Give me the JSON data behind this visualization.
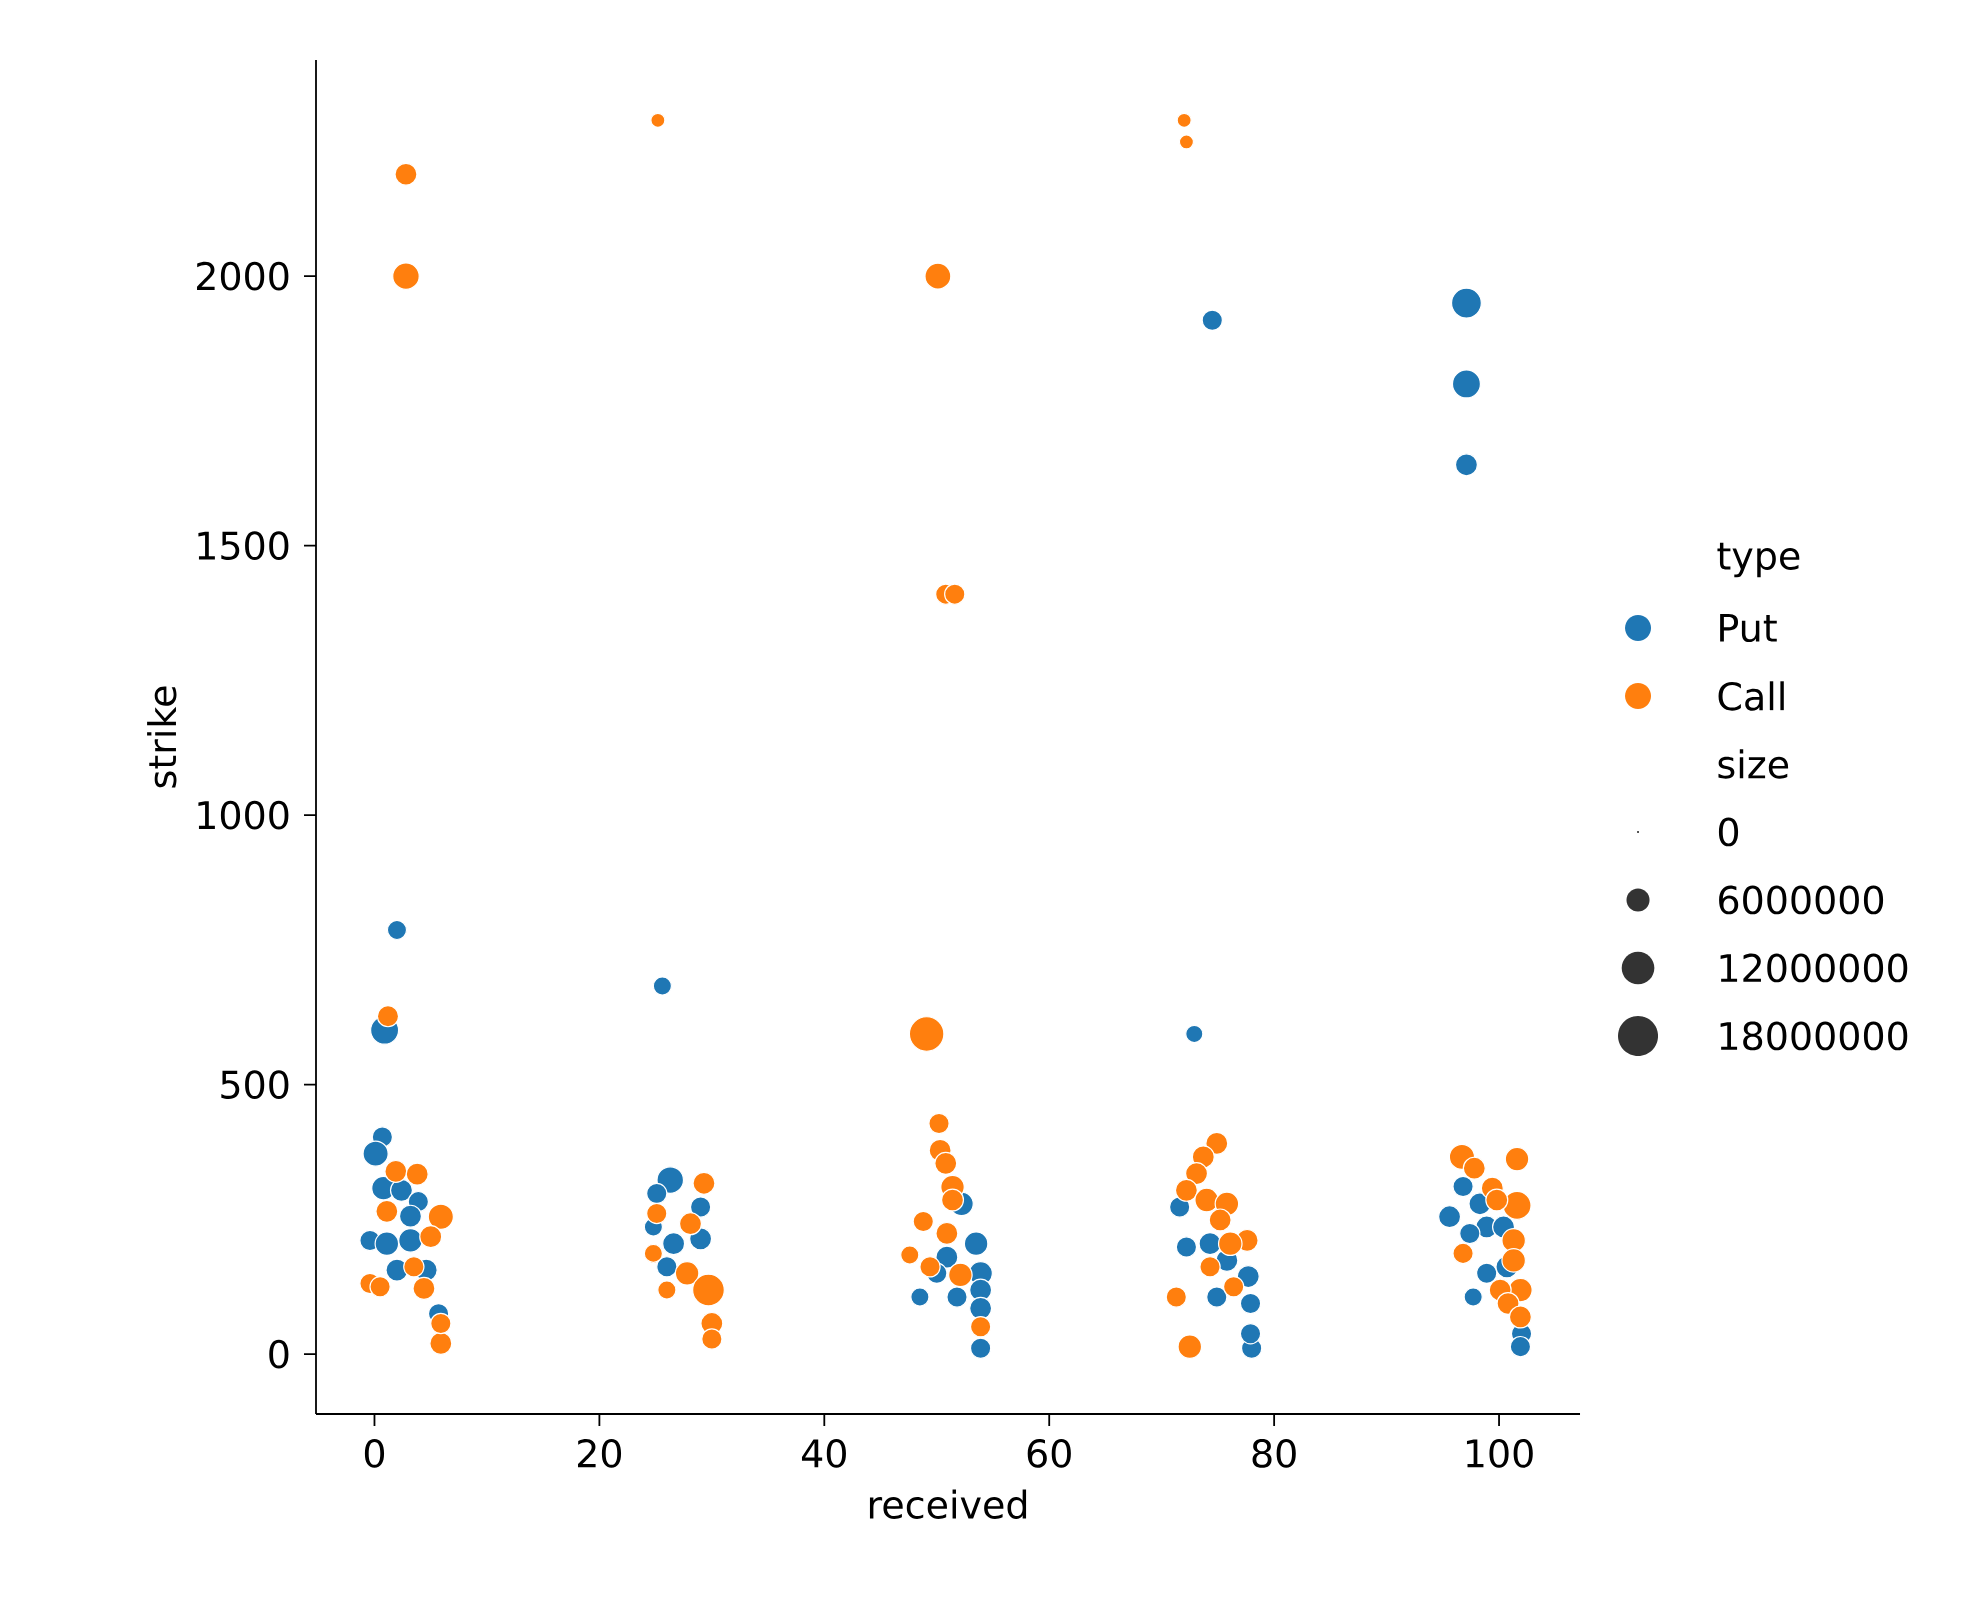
{
  "chart_data": {
    "type": "scatter",
    "xlabel": "received",
    "ylabel": "strike",
    "legend_title": "type",
    "annotations": [
      "size"
    ],
    "marker": "circle",
    "legend": "right",
    "xlim": [
      -5.2,
      107.2
    ],
    "ylim": [
      -111,
      2401
    ],
    "xticks": [
      0,
      20,
      40,
      60,
      80,
      100
    ],
    "yticks": [
      0,
      500,
      1000,
      1500,
      2000
    ],
    "size_legend": [
      {
        "value": 0,
        "label": "0"
      },
      6000000,
      12000000,
      18000000
    ],
    "series": [
      {
        "name": "Put",
        "color": "#1f77b4",
        "x": [
          97.1,
          97.1,
          97.1,
          74.5,
          2.0,
          25.6,
          72.9,
          0.9,
          0.7,
          0.1,
          0.8,
          2.4,
          3.9,
          3.2,
          3.2,
          -0.4,
          4.6,
          5.7,
          2.0,
          1.1,
          26.3,
          29.0,
          29.0,
          26.6,
          25.1,
          26.0,
          24.8,
          52.2,
          53.5,
          53.9,
          53.9,
          53.9,
          53.9,
          50.9,
          50.0,
          48.5,
          51.8,
          77.7,
          77.9,
          78.0,
          77.9,
          74.3,
          72.2,
          75.8,
          74.9,
          71.6,
          95.6,
          96.8,
          98.3,
          98.9,
          100.4,
          97.4,
          98.9,
          100.7,
          102.0,
          101.9,
          97.7
        ],
        "values": [
          1950,
          1800,
          1650,
          1918,
          787,
          683,
          594,
          601,
          403,
          372,
          308,
          304,
          283,
          256,
          211,
          211,
          156,
          75,
          156,
          205,
          323,
          273,
          214,
          205,
          298,
          162,
          236,
          279,
          205,
          150,
          119,
          85,
          11,
          180,
          150,
          106,
          106,
          144,
          94,
          11,
          38,
          205,
          199,
          174,
          106,
          273,
          255,
          311,
          279,
          236,
          236,
          224,
          150,
          162,
          38,
          14,
          106
        ],
        "sizes": [
          10000000,
          8800000,
          5400000,
          4600000,
          4100000,
          3700000,
          3300000,
          8800000,
          4600000,
          7100000,
          6200000,
          5400000,
          4600000,
          5400000,
          6200000,
          4600000,
          5400000,
          4600000,
          5400000,
          6200000,
          7900000,
          4600000,
          5400000,
          5400000,
          4600000,
          4600000,
          3700000,
          6200000,
          6200000,
          6200000,
          5400000,
          5400000,
          4600000,
          5400000,
          4600000,
          3700000,
          4600000,
          5400000,
          4600000,
          4600000,
          4600000,
          5400000,
          4600000,
          5400000,
          4600000,
          4600000,
          5400000,
          4600000,
          5400000,
          5400000,
          5400000,
          4600000,
          4600000,
          5400000,
          4600000,
          4600000,
          3700000
        ]
      },
      {
        "name": "Call",
        "color": "#ff7f0e",
        "x": [
          2.8,
          2.8,
          25.2,
          50.1,
          50.8,
          51.6,
          72.0,
          72.2,
          49.1,
          1.2,
          1.9,
          3.8,
          1.1,
          5.9,
          5.0,
          4.4,
          -0.4,
          5.9,
          5.9,
          3.5,
          0.5,
          29.3,
          25.1,
          28.1,
          27.8,
          29.7,
          30.0,
          30.0,
          26.0,
          24.8,
          50.2,
          50.3,
          50.8,
          51.4,
          48.8,
          51.4,
          52.1,
          47.6,
          53.9,
          49.4,
          50.9,
          74.9,
          73.7,
          73.1,
          72.2,
          74.0,
          75.8,
          77.6,
          76.1,
          76.4,
          71.3,
          72.5,
          74.3,
          75.2,
          96.7,
          101.6,
          97.8,
          101.6,
          99.4,
          99.8,
          101.3,
          101.3,
          101.9,
          100.1,
          100.8,
          101.9,
          96.8
        ],
        "values": [
          2189,
          2000,
          2289,
          2000,
          1410,
          1410,
          2289,
          2249,
          594,
          627,
          339,
          334,
          265,
          255,
          218,
          122,
          131,
          20,
          57,
          162,
          125,
          317,
          261,
          242,
          150,
          119,
          57,
          28,
          119,
          187,
          428,
          378,
          354,
          310,
          246,
          286,
          147,
          184,
          51,
          162,
          224,
          391,
          366,
          335,
          304,
          286,
          279,
          211,
          205,
          125,
          106,
          14,
          162,
          249,
          366,
          362,
          345,
          276,
          308,
          286,
          211,
          174,
          119,
          119,
          94,
          69,
          187
        ],
        "sizes": [
          5400000,
          7900000,
          2200000,
          7500000,
          4600000,
          4600000,
          2200000,
          2200000,
          13400000,
          5000000,
          5400000,
          5400000,
          5400000,
          7100000,
          5400000,
          5400000,
          4600000,
          5400000,
          4600000,
          4600000,
          4600000,
          5400000,
          4600000,
          5400000,
          6200000,
          11300000,
          5400000,
          4600000,
          3700000,
          3700000,
          4600000,
          5400000,
          5400000,
          6200000,
          4600000,
          5400000,
          6200000,
          3700000,
          4600000,
          4600000,
          5400000,
          5400000,
          5400000,
          5400000,
          5400000,
          6200000,
          6200000,
          5400000,
          6200000,
          4600000,
          4600000,
          6200000,
          4600000,
          5400000,
          7100000,
          6200000,
          5400000,
          8800000,
          5400000,
          5400000,
          6200000,
          6200000,
          6200000,
          5400000,
          5400000,
          5400000,
          4600000
        ]
      }
    ]
  }
}
